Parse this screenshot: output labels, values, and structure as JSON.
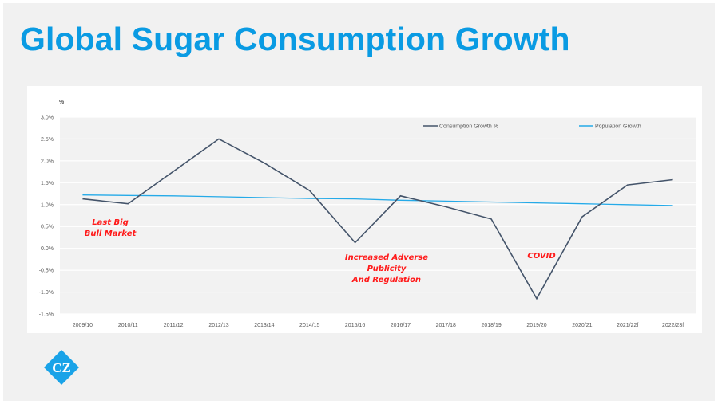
{
  "slide": {
    "title": "Global Sugar Consumption Growth",
    "logo_text": "CZ",
    "colors": {
      "title": "#0a9be3",
      "logo": "#1aa3e8",
      "annotation": "#ff1a1a"
    }
  },
  "chart_data": {
    "type": "line",
    "title": "",
    "xlabel": "",
    "ylabel": "%",
    "ylim": [
      -1.5,
      3.0
    ],
    "ytick_step": 0.5,
    "yticks": [
      "3.0%",
      "2.5%",
      "2.0%",
      "1.5%",
      "1.0%",
      "0.5%",
      "0.0%",
      "-0.5%",
      "-1.0%",
      "-1.5%"
    ],
    "grid": true,
    "legend_position": "top-right",
    "categories": [
      "2009/10",
      "2010/11",
      "2011/12",
      "2012/13",
      "2013/14",
      "2014/15",
      "2015/16",
      "2016/17",
      "2017/18",
      "2018/19",
      "2019/20",
      "2020/21",
      "2021/22f",
      "2022/23f"
    ],
    "series": [
      {
        "name": "Consumption Growth %",
        "color": "#44546a",
        "values": [
          1.13,
          1.02,
          1.76,
          2.5,
          1.95,
          1.32,
          0.13,
          1.2,
          0.95,
          0.67,
          -1.15,
          0.72,
          1.45,
          1.57
        ]
      },
      {
        "name": "Population Growth",
        "color": "#25aae8",
        "values": [
          1.22,
          1.21,
          1.2,
          1.18,
          1.16,
          1.14,
          1.13,
          1.1,
          1.08,
          1.06,
          1.04,
          1.02,
          1.0,
          0.98
        ]
      }
    ],
    "annotations": [
      {
        "lines": [
          "Last Big",
          "Bull Market"
        ],
        "anchor_category": "2009/10 - 2010/11",
        "y_value": 0.55
      },
      {
        "lines": [
          "Increased Adverse",
          "Publicity",
          "And Regulation"
        ],
        "anchor_category": "2016/17",
        "y_value": -0.2
      },
      {
        "lines": [
          "COVID"
        ],
        "anchor_category": "2019/20",
        "y_value": -0.15
      }
    ]
  }
}
